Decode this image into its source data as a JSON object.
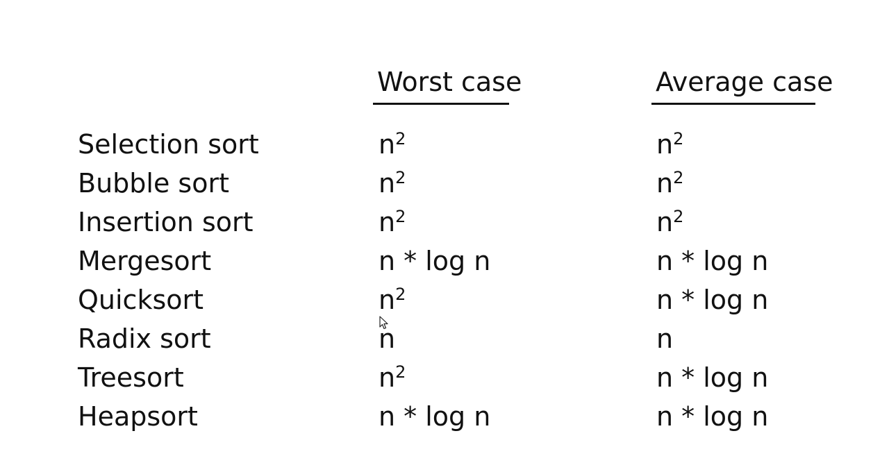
{
  "table": {
    "headers": {
      "worst": "Worst case",
      "average": "Average case"
    },
    "rows": [
      {
        "name": "Selection sort",
        "worst": "n",
        "worst_exp": "2",
        "average": "n",
        "average_exp": "2"
      },
      {
        "name": "Bubble sort",
        "worst": "n",
        "worst_exp": "2",
        "average": "n",
        "average_exp": "2"
      },
      {
        "name": "Insertion sort",
        "worst": "n",
        "worst_exp": "2",
        "average": "n",
        "average_exp": "2"
      },
      {
        "name": "Mergesort",
        "worst": "n * log n",
        "worst_exp": "",
        "average": "n * log n",
        "average_exp": ""
      },
      {
        "name": "Quicksort",
        "worst": "n",
        "worst_exp": "2",
        "average": "n * log n",
        "average_exp": ""
      },
      {
        "name": "Radix sort",
        "worst": "n",
        "worst_exp": "",
        "average": "n",
        "average_exp": ""
      },
      {
        "name": "Treesort",
        "worst": "n",
        "worst_exp": "2",
        "average": "n * log n",
        "average_exp": ""
      },
      {
        "name": "Heapsort",
        "worst": "n * log n",
        "worst_exp": "",
        "average": "n * log n",
        "average_exp": ""
      }
    ]
  },
  "icons": {
    "cursor": "mouse-pointer-icon"
  }
}
